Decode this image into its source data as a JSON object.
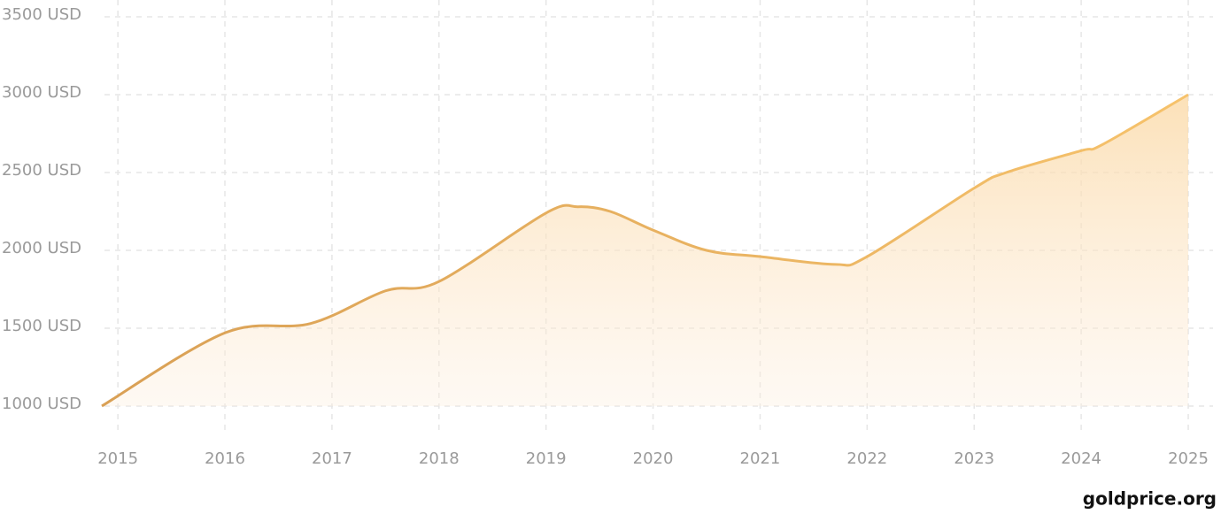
{
  "chart_data": {
    "type": "line",
    "x": [
      2014.85,
      2016,
      2016.8,
      2017.5,
      2018,
      2019,
      2019.3,
      2019.6,
      2020,
      2020.5,
      2021,
      2021.7,
      2022,
      2023,
      2023.3,
      2024,
      2024.2,
      2025
    ],
    "series": [
      {
        "color": "#e4a95a",
        "values": [
          1000,
          1470,
          1530,
          1740,
          1800,
          2240,
          2280,
          2250,
          2130,
          2000,
          1960,
          1910,
          1960,
          2400,
          2500,
          2640,
          2680,
          3000
        ]
      }
    ],
    "xlim": [
      2014.85,
      2025
    ],
    "xticks": [
      2015,
      2016,
      2017,
      2018,
      2019,
      2020,
      2021,
      2022,
      2023,
      2024,
      2025
    ],
    "ylim": [
      1000,
      3500
    ],
    "yticks": [
      {
        "value": 1000,
        "label": "1000 USD"
      },
      {
        "value": 1500,
        "label": "1500 USD"
      },
      {
        "value": 2000,
        "label": "2000 USD"
      },
      {
        "value": 2500,
        "label": "2500 USD"
      },
      {
        "value": 3000,
        "label": "3000 USD"
      },
      {
        "value": 3500,
        "label": "3500 USD"
      }
    ],
    "grid": true,
    "source": "goldprice.org"
  }
}
